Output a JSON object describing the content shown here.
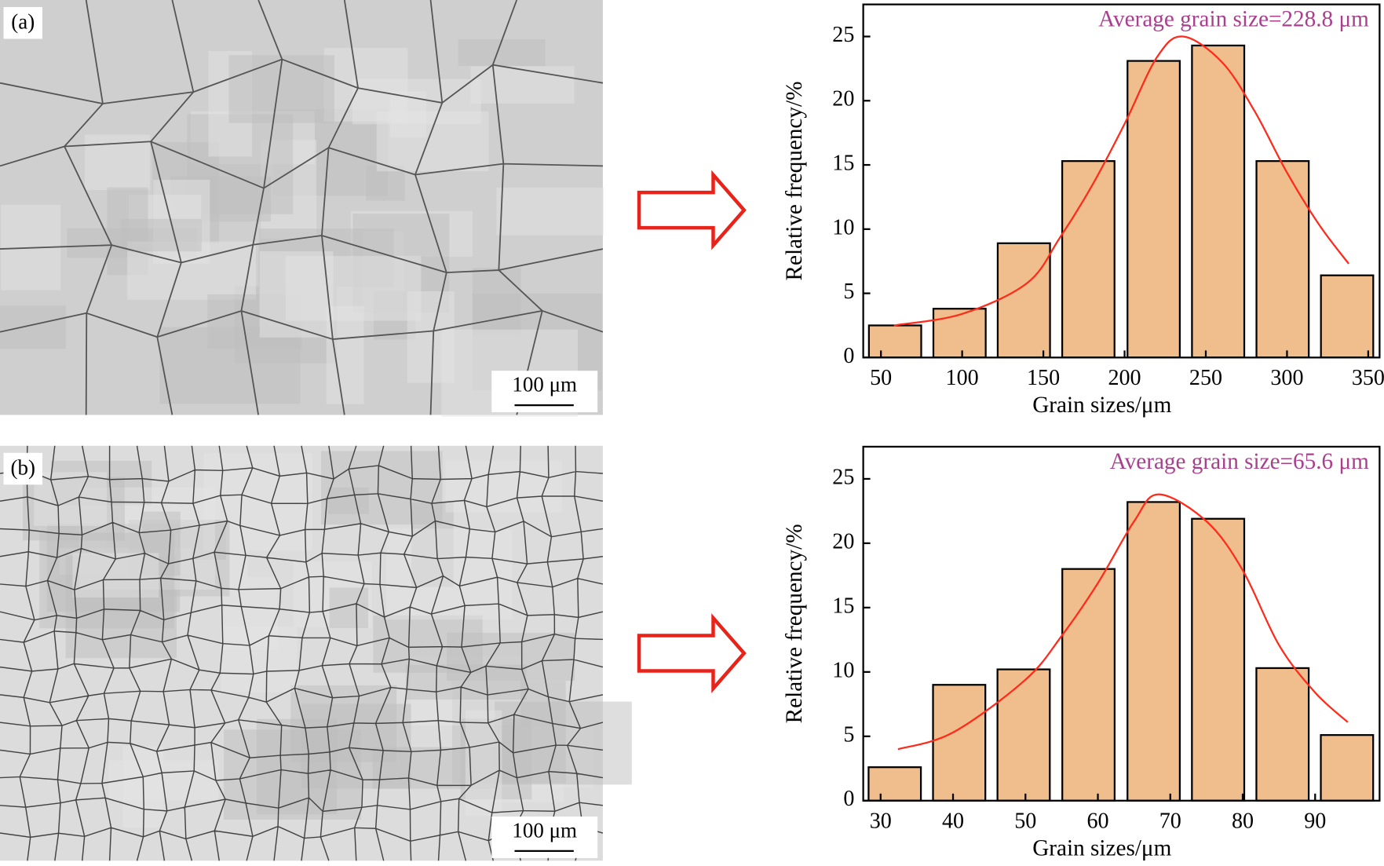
{
  "panels": [
    {
      "label": "(a)",
      "scale_bar": "100 μm"
    },
    {
      "label": "(b)",
      "scale_bar": "100 μm"
    }
  ],
  "chart_data": [
    {
      "type": "bar",
      "title": "Average grain size=228.8 μm",
      "xlabel": "Grain sizes/μm",
      "ylabel": "Relative frequency/%",
      "x": [
        58.7,
        98.4,
        138,
        177.7,
        217.9,
        257.6,
        297.3,
        337
      ],
      "values": [
        2.5,
        3.8,
        8.9,
        15.3,
        23.1,
        24.3,
        15.3,
        6.4
      ],
      "color": "#f0be8c",
      "fit": {
        "x": [
          58,
          100,
          140,
          160,
          180,
          200,
          220,
          236,
          260,
          280,
          300,
          320,
          338
        ],
        "values": [
          2.5,
          3.4,
          5.8,
          9.3,
          13.4,
          18.2,
          23.4,
          25,
          23,
          19.2,
          14.4,
          10.3,
          7.3
        ],
        "color": "#ff2a1a"
      },
      "xlim": [
        39.1,
        357
      ],
      "xticks": [
        50,
        100,
        150,
        200,
        250,
        300,
        350
      ],
      "ylim": [
        0,
        27.5
      ],
      "yticks": [
        0,
        5,
        10,
        15,
        20,
        25
      ]
    },
    {
      "type": "bar",
      "title": "Average grain size=65.6 μm",
      "xlabel": "Grain sizes/μm",
      "ylabel": "Relative frequency/%",
      "x": [
        31.95,
        40.85,
        49.75,
        58.7,
        67.7,
        76.6,
        85.5,
        94.4
      ],
      "values": [
        2.6,
        9.0,
        10.2,
        18.0,
        23.2,
        21.9,
        10.3,
        5.1
      ],
      "color": "#f0be8c",
      "fit": {
        "x": [
          32.4,
          40,
          50,
          55,
          60,
          65,
          68.4,
          75,
          80,
          85,
          90,
          94.5
        ],
        "values": [
          4.0,
          5.3,
          9.4,
          12.8,
          16.9,
          21.7,
          23.8,
          21.7,
          17.9,
          12.1,
          8.4,
          6.1
        ],
        "color": "#ff2a1a"
      },
      "xlim": [
        27.6,
        98.9
      ],
      "xticks": [
        30,
        40,
        50,
        60,
        70,
        80,
        90
      ],
      "ylim": [
        0,
        27.5
      ],
      "yticks": [
        0,
        5,
        10,
        15,
        20,
        25
      ]
    }
  ]
}
